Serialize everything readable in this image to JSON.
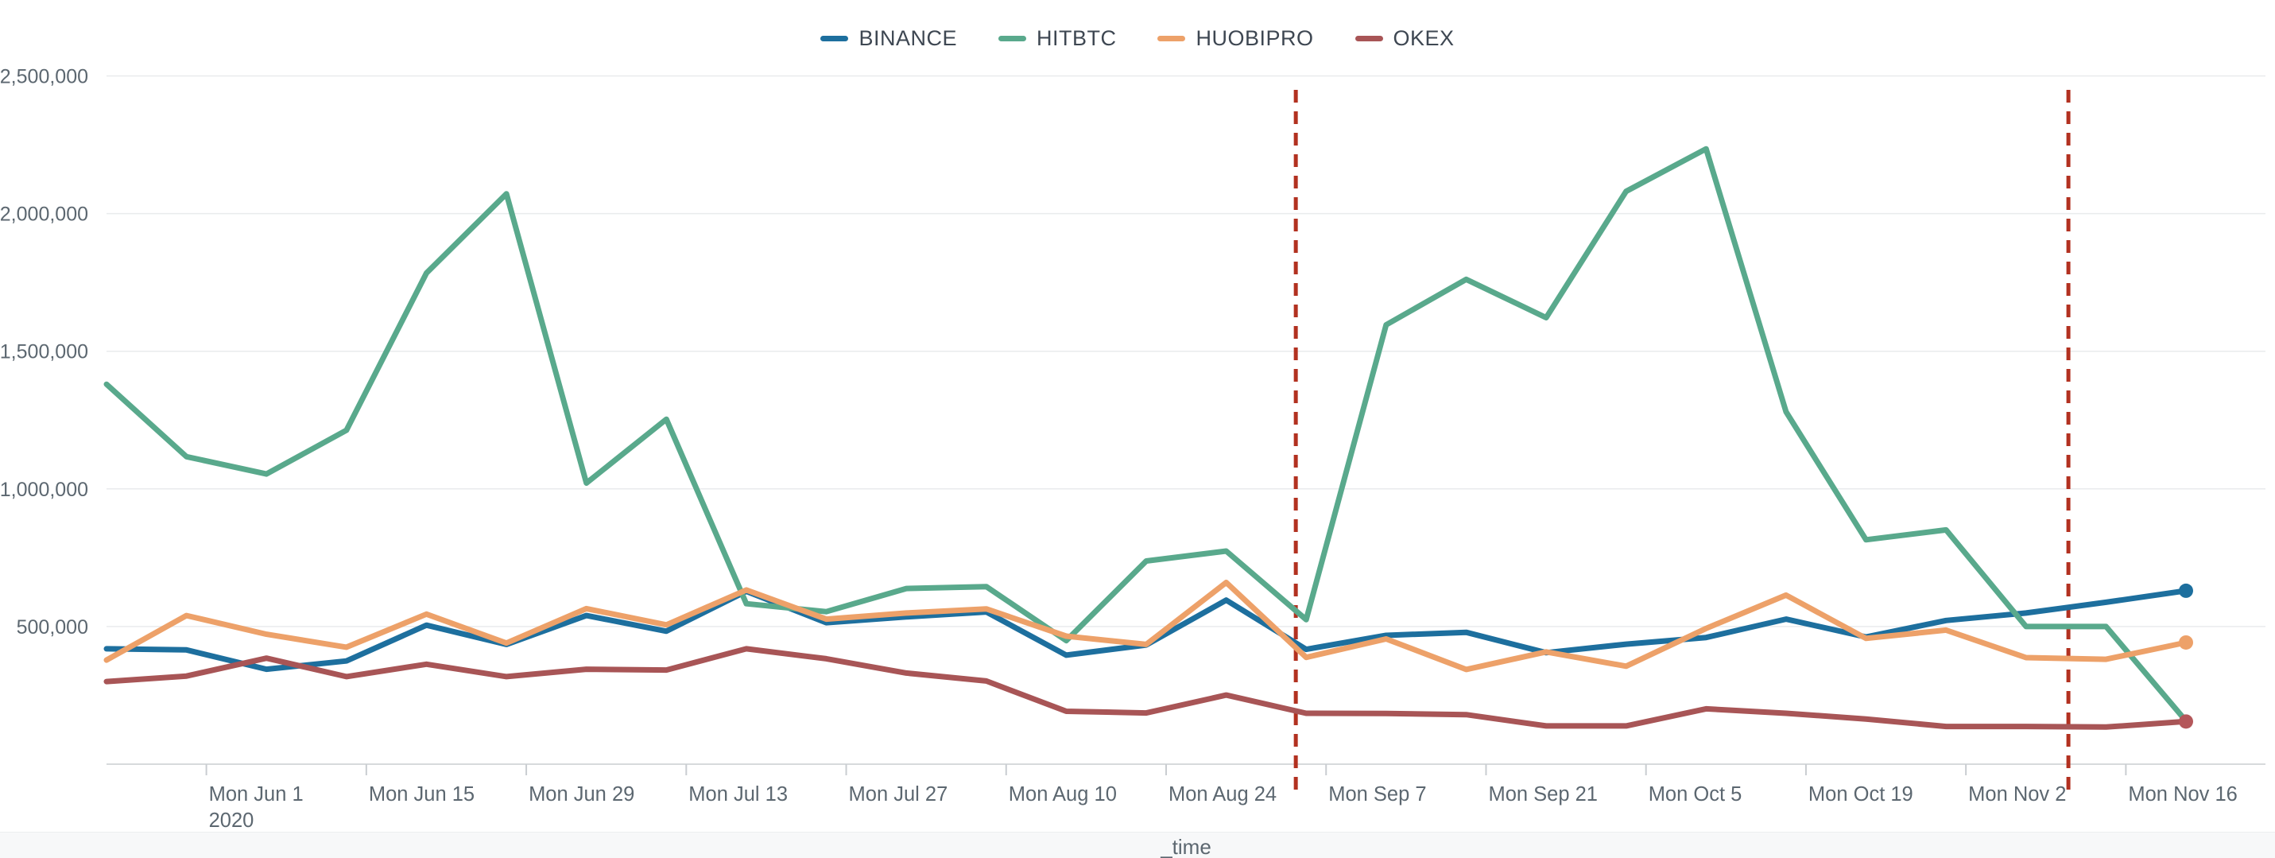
{
  "legend": {
    "items": [
      {
        "label": "BINANCE",
        "color": "#1d6f9e"
      },
      {
        "label": "HITBTC",
        "color": "#59a98c"
      },
      {
        "label": "HUOBIPRO",
        "color": "#eda169"
      },
      {
        "label": "OKEX",
        "color": "#a85556"
      }
    ]
  },
  "chart_data": {
    "type": "line",
    "title": "",
    "xlabel": "_time",
    "ylabel": "",
    "grid": "horizontal",
    "legend_position": "top-center",
    "background": "#ffffff",
    "axis_text_color": "#5c6770",
    "grid_color": "#e9ebed",
    "axis_line_color": "#d7dadc",
    "tick_color": "#c9cdd1",
    "footer_bg": "#f7f8f9",
    "ylim": [
      0,
      2650000
    ],
    "y_ticks": [
      500000,
      1000000,
      1500000,
      2000000,
      2500000
    ],
    "y_tick_labels": [
      "500,000",
      "1,000,000",
      "1,500,000",
      "2,000,000",
      "2,500,000"
    ],
    "dates": [
      "2020-05-25",
      "2020-06-01",
      "2020-06-08",
      "2020-06-15",
      "2020-06-22",
      "2020-06-29",
      "2020-07-06",
      "2020-07-13",
      "2020-07-20",
      "2020-07-27",
      "2020-08-03",
      "2020-08-10",
      "2020-08-17",
      "2020-08-24",
      "2020-08-31",
      "2020-09-07",
      "2020-09-14",
      "2020-09-21",
      "2020-09-28",
      "2020-10-05",
      "2020-10-12",
      "2020-10-19",
      "2020-10-26",
      "2020-11-02",
      "2020-11-09",
      "2020-11-16",
      "2020-11-23"
    ],
    "x_ticks": [
      {
        "label": "Mon Jun 1",
        "sublabel": "2020",
        "index": 1
      },
      {
        "label": "Mon Jun 15",
        "index": 3
      },
      {
        "label": "Mon Jun 29",
        "index": 5
      },
      {
        "label": "Mon Jul 13",
        "index": 7
      },
      {
        "label": "Mon Jul 27",
        "index": 9
      },
      {
        "label": "Mon Aug 10",
        "index": 11
      },
      {
        "label": "Mon Aug 24",
        "index": 13
      },
      {
        "label": "Mon Sep 7",
        "index": 15
      },
      {
        "label": "Mon Sep 21",
        "index": 17
      },
      {
        "label": "Mon Oct 5",
        "index": 19
      },
      {
        "label": "Mon Oct 19",
        "index": 21
      },
      {
        "label": "Mon Nov 2",
        "index": 23
      },
      {
        "label": "Mon Nov 16",
        "index": 25
      }
    ],
    "series": [
      {
        "name": "BINANCE",
        "color": "#1d6f9e",
        "end_dot": true,
        "values": [
          419000,
          415000,
          345000,
          375000,
          505000,
          435000,
          540000,
          483000,
          628000,
          514000,
          535000,
          553000,
          396000,
          433000,
          596000,
          417000,
          468000,
          479000,
          405000,
          436000,
          460000,
          527000,
          462000,
          522000,
          549000,
          588000,
          630000
        ]
      },
      {
        "name": "HITBTC",
        "color": "#59a98c",
        "end_dot": false,
        "values": [
          1380000,
          1117000,
          1054000,
          1213000,
          1784000,
          2072000,
          1021000,
          1253000,
          583000,
          554000,
          638000,
          645000,
          449000,
          738000,
          774000,
          525000,
          1596000,
          1761000,
          1622000,
          2081000,
          2235000,
          1280000,
          815000,
          851000,
          500000,
          500000,
          157000
        ]
      },
      {
        "name": "HUOBIPRO",
        "color": "#eda169",
        "end_dot": true,
        "values": [
          378000,
          540000,
          472000,
          425000,
          545000,
          440000,
          565000,
          506000,
          633000,
          527000,
          549000,
          564000,
          465000,
          435000,
          660000,
          388000,
          455000,
          344000,
          408000,
          356000,
          493000,
          614000,
          457000,
          487000,
          387000,
          381000,
          442000
        ]
      },
      {
        "name": "OKEX",
        "color": "#a85556",
        "dot_color": "#b4575a",
        "end_dot": true,
        "values": [
          300000,
          320000,
          385000,
          318000,
          363000,
          318000,
          345000,
          342000,
          419000,
          383000,
          331000,
          302000,
          192000,
          186000,
          251000,
          185000,
          184000,
          180000,
          139000,
          139000,
          201000,
          185000,
          164000,
          137000,
          137000,
          135000,
          155000
        ]
      }
    ],
    "annotations": {
      "vlines": [
        {
          "index_frac": 14.87,
          "date_approx": "2020-09-05",
          "color": "#b23120",
          "style": "dashed"
        },
        {
          "index_frac": 24.53,
          "date_approx": "2020-11-12",
          "color": "#b23120",
          "style": "dashed"
        }
      ]
    }
  }
}
